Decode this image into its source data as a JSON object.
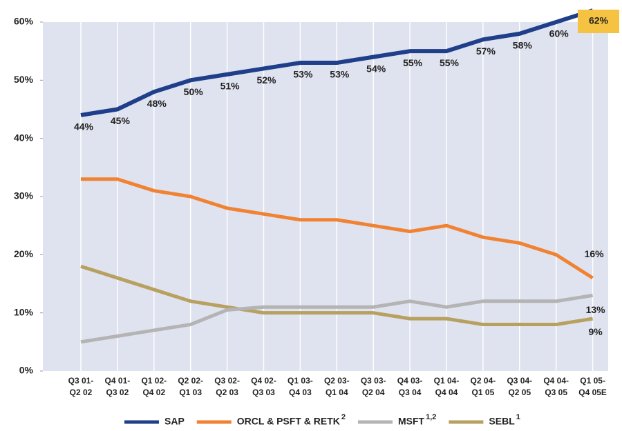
{
  "chart_data": {
    "type": "line",
    "categories": [
      "Q3 01-\nQ2 02",
      "Q4 01-\nQ3 02",
      "Q1 02-\nQ4 02",
      "Q2 02-\nQ1 03",
      "Q3 02-\nQ2 03",
      "Q4 02-\nQ3 03",
      "Q1 03-\nQ4 03",
      "Q2 03-\nQ1 04",
      "Q3 03-\nQ2 04",
      "Q4 03-\nQ3 04",
      "Q1 04-\nQ4 04",
      "Q2 04-\nQ1 05",
      "Q3 04-\nQ2 05",
      "Q4 04-\nQ3 05",
      "Q1 05-\nQ4 05E"
    ],
    "series": [
      {
        "name": "SAP",
        "color": "#1f3f8a",
        "values": [
          44,
          45,
          48,
          50,
          51,
          52,
          53,
          53,
          54,
          55,
          55,
          57,
          58,
          60,
          62
        ],
        "value_labels": [
          "44%",
          "45%",
          "48%",
          "50%",
          "51%",
          "52%",
          "53%",
          "53%",
          "54%",
          "55%",
          "55%",
          "57%",
          "58%",
          "60%",
          "62%"
        ]
      },
      {
        "name": "ORCL & PSFT & RETK",
        "note": "2",
        "color": "#f08232",
        "values": [
          33,
          33,
          31,
          30,
          28,
          27,
          26,
          26,
          25,
          24,
          25,
          23,
          22,
          20,
          16
        ],
        "value_labels": [
          null,
          null,
          null,
          null,
          null,
          null,
          null,
          null,
          null,
          null,
          null,
          null,
          null,
          null,
          "16%"
        ]
      },
      {
        "name": "MSFT",
        "note": "1,2",
        "color": "#b4b4b4",
        "values": [
          5,
          6,
          7,
          8,
          10.5,
          11,
          11,
          11,
          11,
          12,
          11,
          12,
          12,
          12,
          13
        ],
        "value_labels": [
          null,
          null,
          null,
          null,
          null,
          null,
          null,
          null,
          null,
          null,
          null,
          null,
          null,
          null,
          "13%"
        ]
      },
      {
        "name": "SEBL",
        "note": "1",
        "color": "#b8a060",
        "values": [
          18,
          16,
          14,
          12,
          11,
          10,
          10,
          10,
          10,
          9,
          9,
          8,
          8,
          8,
          9
        ],
        "value_labels": [
          null,
          null,
          null,
          null,
          null,
          null,
          null,
          null,
          null,
          null,
          null,
          null,
          null,
          null,
          "9%"
        ]
      }
    ],
    "ylim": [
      0,
      60
    ],
    "yticks": [
      {
        "value": 0,
        "label": "0%"
      },
      {
        "value": 10,
        "label": "10%"
      },
      {
        "value": 20,
        "label": "20%"
      },
      {
        "value": 30,
        "label": "30%"
      },
      {
        "value": 40,
        "label": "40%"
      },
      {
        "value": 50,
        "label": "50%"
      },
      {
        "value": 60,
        "label": "60%"
      }
    ],
    "grid": true
  }
}
